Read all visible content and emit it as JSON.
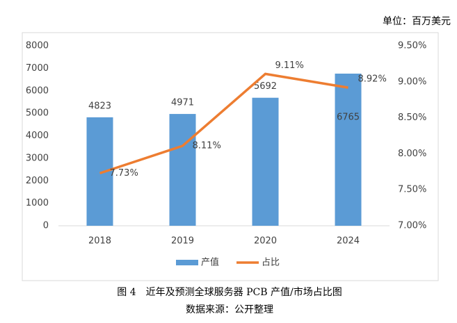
{
  "chart_data": {
    "type": "bar",
    "unit_label": "单位：百万美元",
    "caption": "图 4　近年及预测全球服务器 PCB 产值/市场占比图",
    "source": "数据来源：公开整理",
    "categories": [
      "2018",
      "2019",
      "2020",
      "2024"
    ],
    "series": [
      {
        "name": "产值",
        "type": "bar",
        "color": "#5b9bd5",
        "values": [
          4823,
          4971,
          5692,
          6765
        ]
      },
      {
        "name": "占比",
        "type": "line",
        "axis": "y2",
        "color": "#ed7d31",
        "values": [
          7.73,
          8.11,
          9.11,
          8.92
        ],
        "value_labels": [
          "7.73%",
          "8.11%",
          "9.11%",
          "8.92%"
        ]
      }
    ],
    "ylim": [
      0,
      8000
    ],
    "yticks": [
      0,
      1000,
      2000,
      3000,
      4000,
      5000,
      6000,
      7000,
      8000
    ],
    "y2lim": [
      7,
      9.5
    ],
    "y2ticks": [
      {
        "value": 7,
        "label": "7.00%"
      },
      {
        "value": 7.5,
        "label": "7.50%"
      },
      {
        "value": 8,
        "label": "8.00%"
      },
      {
        "value": 8.5,
        "label": "8.50%"
      },
      {
        "value": 9,
        "label": "9.00%"
      },
      {
        "value": 9.5,
        "label": "9.50%"
      }
    ],
    "grid": false,
    "legend": "bottom"
  }
}
